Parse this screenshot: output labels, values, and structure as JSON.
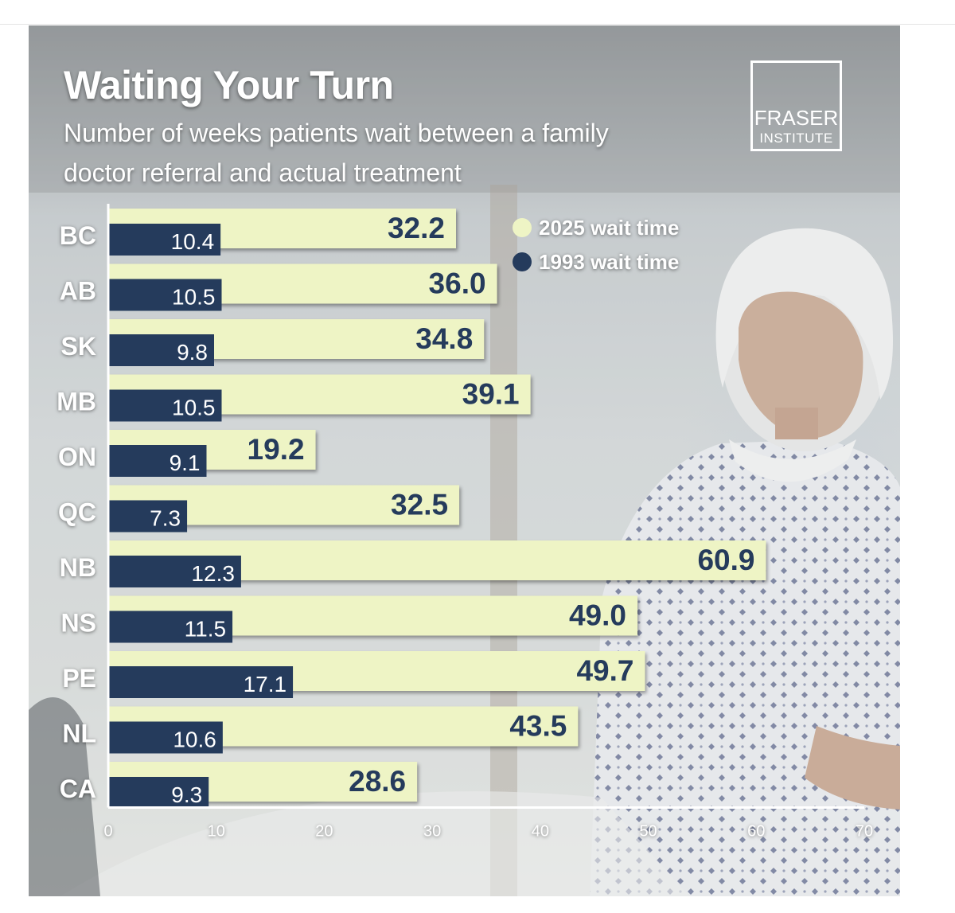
{
  "header": {
    "title": "Waiting Your Turn",
    "subtitle": "Number of weeks patients wait between a family doctor referral and actual treatment"
  },
  "logo": {
    "line1": "FRASER",
    "line2": "INSTITUTE"
  },
  "colors": {
    "bar_2025": "#eef4c5",
    "bar_1993": "#253b5c",
    "label_2025": "#253b5c",
    "label_1993": "#ffffff",
    "province_label": "#ffffff",
    "axis": "#ffffff"
  },
  "chart_data": {
    "type": "bar",
    "orientation": "horizontal",
    "title": "Waiting Your Turn",
    "subtitle": "Number of weeks patients wait between a family doctor referral and actual treatment",
    "categories": [
      "BC",
      "AB",
      "SK",
      "MB",
      "ON",
      "QC",
      "NB",
      "NS",
      "PE",
      "NL",
      "CA"
    ],
    "series": [
      {
        "name": "2025 wait time",
        "values": [
          32.2,
          36.0,
          34.8,
          39.1,
          19.2,
          32.5,
          60.9,
          49.0,
          49.7,
          43.5,
          28.6
        ],
        "color": "#eef4c5"
      },
      {
        "name": "1993 wait time",
        "values": [
          10.4,
          10.5,
          9.8,
          10.5,
          9.1,
          7.3,
          12.3,
          11.5,
          17.1,
          10.6,
          9.3
        ],
        "color": "#253b5c"
      }
    ],
    "value_labels": {
      "2025": [
        "32.2",
        "36.0",
        "34.8",
        "39.1",
        "19.2",
        "32.5",
        "60.9",
        "49.0",
        "49.7",
        "43.5",
        "28.6"
      ],
      "1993": [
        "10.4",
        "10.5",
        "9.8",
        "10.5",
        "9.1",
        "7.3",
        "12.3",
        "11.5",
        "17.1",
        "10.6",
        "9.3"
      ]
    },
    "xlim": [
      0,
      70
    ],
    "xticks": [
      "0",
      "10",
      "20",
      "30",
      "40",
      "50",
      "60",
      "70"
    ],
    "xlabel": "",
    "ylabel": "",
    "legend": {
      "position": "top-right",
      "entries": [
        "2025 wait time",
        "1993 wait time"
      ]
    },
    "grid": false
  }
}
